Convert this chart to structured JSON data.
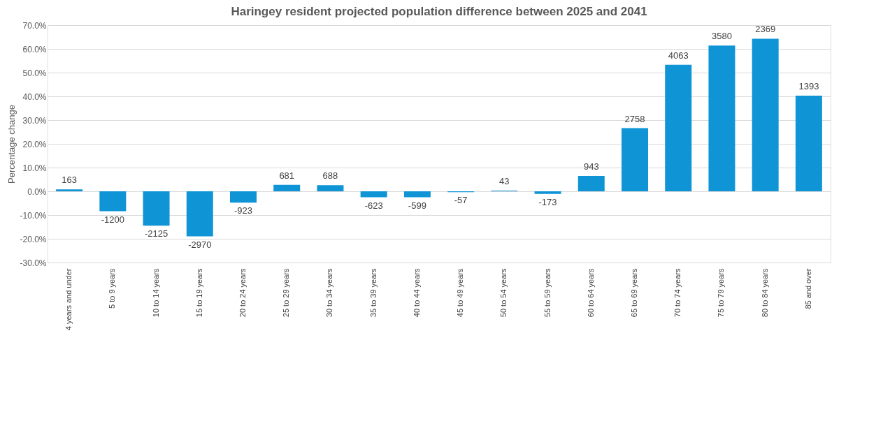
{
  "chart_data": {
    "type": "bar",
    "title": "Haringey resident projected population difference between 2025 and 2041",
    "ylabel": "Percentage change",
    "categories": [
      "4 years and under",
      "5 to 9 years",
      "10 to 14 years",
      "15 to 19 years",
      "20 to 24 years",
      "25 to 29 years",
      "30 to 34 years",
      "35 to 39 years",
      "40 to 44 years",
      "45 to 49 years",
      "50 to 54 years",
      "55 to 59 years",
      "60 to 64 years",
      "65 to 69 years",
      "70 to 74 years",
      "75 to 79 years",
      "80 to 84 years",
      "85 and over"
    ],
    "values": [
      0.8,
      -8.4,
      -14.5,
      -19.0,
      -4.8,
      2.7,
      2.6,
      -2.5,
      -2.5,
      -0.4,
      0.3,
      -1.1,
      6.5,
      26.6,
      53.3,
      61.4,
      64.3,
      40.3
    ],
    "annotations": [
      {
        "text": "163",
        "x": "4 years and under",
        "y": 0.8
      },
      {
        "text": "-1200",
        "x": "5 to 9 years",
        "y": -8.4
      },
      {
        "text": "-2125",
        "x": "10 to 14 years",
        "y": -14.5
      },
      {
        "text": "-2970",
        "x": "15 to 19 years",
        "y": -19.0
      },
      {
        "text": "-923",
        "x": "20 to 24 years",
        "y": -4.8
      },
      {
        "text": "681",
        "x": "25 to 29 years",
        "y": 2.7
      },
      {
        "text": "688",
        "x": "30 to 34 years",
        "y": 2.6
      },
      {
        "text": "-623",
        "x": "35 to 39 years",
        "y": -2.5
      },
      {
        "text": "-599",
        "x": "40 to 44 years",
        "y": -2.5
      },
      {
        "text": "-57",
        "x": "45 to 49 years",
        "y": -0.4
      },
      {
        "text": "43",
        "x": "50 to 54 years",
        "y": 0.3
      },
      {
        "text": "-173",
        "x": "55 to 59 years",
        "y": -1.1
      },
      {
        "text": "943",
        "x": "60 to 64 years",
        "y": 6.5
      },
      {
        "text": "2758",
        "x": "65 to 69 years",
        "y": 26.6
      },
      {
        "text": "4063",
        "x": "70 to 74 years",
        "y": 53.3
      },
      {
        "text": "3580",
        "x": "75 to 79 years",
        "y": 61.4
      },
      {
        "text": "2369",
        "x": "80 to 84 years",
        "y": 64.3
      },
      {
        "text": "1393",
        "x": "85 and over",
        "y": 40.3
      }
    ],
    "color": "#0f95d6",
    "ylim": [
      -30,
      70
    ],
    "yticks": [
      {
        "value": -30,
        "label": "-30.0%"
      },
      {
        "value": -20,
        "label": "-20.0%"
      },
      {
        "value": -10,
        "label": "-10.0%"
      },
      {
        "value": 0,
        "label": "0.0%"
      },
      {
        "value": 10,
        "label": "10.0%"
      },
      {
        "value": 20,
        "label": "20.0%"
      },
      {
        "value": 30,
        "label": "30.0%"
      },
      {
        "value": 40,
        "label": "40.0%"
      },
      {
        "value": 50,
        "label": "50.0%"
      },
      {
        "value": 60,
        "label": "60.0%"
      },
      {
        "value": 70,
        "label": "70.0%"
      }
    ],
    "grid": "y"
  }
}
